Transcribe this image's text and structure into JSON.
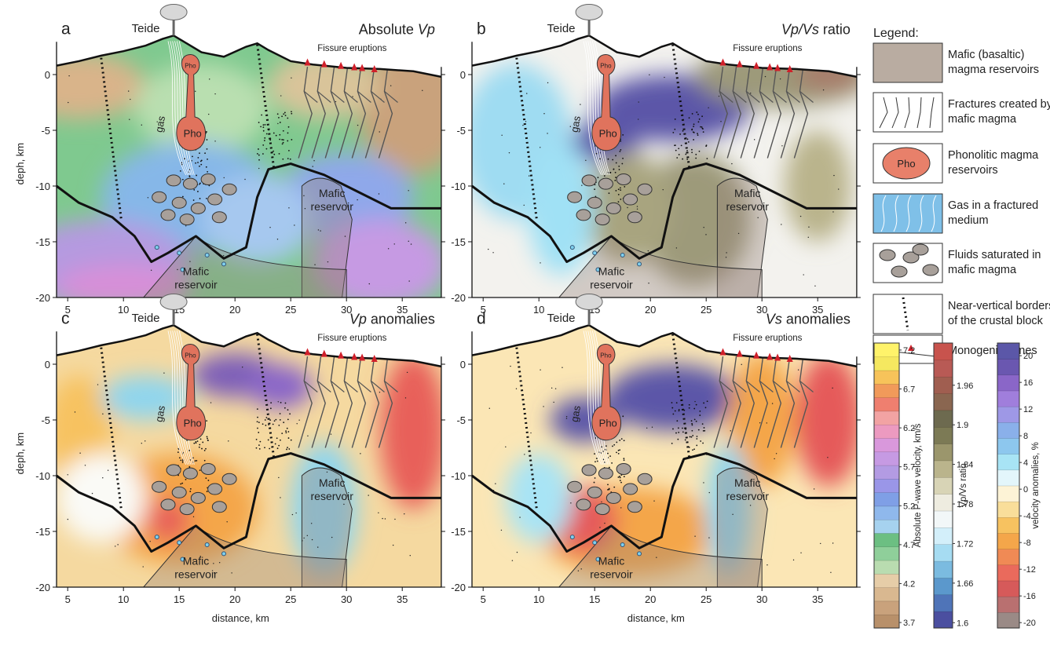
{
  "panels": [
    {
      "letter": "a",
      "title": [
        {
          "text": "Absolute ",
          "italic": false
        },
        {
          "text": "Vp",
          "italic": true
        }
      ]
    },
    {
      "letter": "b",
      "title": [
        {
          "text": "Vp/Vs",
          "italic": true
        },
        {
          "text": " ratio",
          "italic": false
        }
      ]
    },
    {
      "letter": "c",
      "title": [
        {
          "text": "Vp",
          "italic": true
        },
        {
          "text": " anomalies",
          "italic": false
        }
      ]
    },
    {
      "letter": "d",
      "title": [
        {
          "text": "Vs",
          "italic": true
        },
        {
          "text": " anomalies",
          "italic": false
        }
      ]
    }
  ],
  "map_labels": {
    "volcano": "Teide",
    "eruptions": "Fissure eruptions",
    "phonolite": "Pho",
    "gas": "gas",
    "reservoir": [
      "Mafic",
      "reservoir"
    ]
  },
  "axes": {
    "ylabel": "deph, km",
    "xlabel": "distance, km",
    "xlim": [
      4,
      38.5
    ],
    "ylim": [
      -20,
      3.5
    ],
    "xticks": [
      5,
      10,
      15,
      20,
      25,
      30,
      35
    ],
    "yticks": [
      0,
      -5,
      -10,
      -15,
      -20
    ]
  },
  "legend": {
    "title": "Legend:",
    "items": [
      [
        "Mafic (basaltic)",
        "magma reservoirs"
      ],
      [
        "Fractures created by",
        "mafic magma"
      ],
      [
        "Phonolitic magma",
        "reservoirs"
      ],
      [
        "Gas in a fractured",
        "medium"
      ],
      [
        "Fluids saturated in",
        "mafic magma"
      ],
      [
        "Near-vertical borders",
        "of the crustal block"
      ],
      [
        "Monogenic cones"
      ]
    ],
    "pho": "Pho"
  },
  "colorbars": [
    {
      "label": "Absolute P-wave velocity, km/s",
      "lim": [
        3.63,
        7.29
      ],
      "ticks": [
        3.7,
        4.2,
        4.7,
        5.2,
        5.7,
        6.2,
        6.7,
        7.2
      ],
      "colors": [
        "#b8906a",
        "#c9a27c",
        "#d9b890",
        "#e6cda8",
        "#b9dcb0",
        "#8fcf9a",
        "#6cbf82",
        "#a6d2ef",
        "#8fb8ec",
        "#7f9fe6",
        "#9a96e8",
        "#b39be3",
        "#c69ae3",
        "#d998dc",
        "#ec9ac0",
        "#f2a3a3",
        "#ef7f6f",
        "#f19a5a",
        "#f7c35a",
        "#f5e860",
        "#fff36a"
      ]
    },
    {
      "label": "Vp/Vs ratio",
      "lim": [
        1.592,
        2.024
      ],
      "ticks": [
        1.6,
        1.66,
        1.72,
        1.78,
        1.84,
        1.9,
        1.96
      ],
      "colors": [
        "#4b4fa0",
        "#4f74b8",
        "#5b98cc",
        "#7bbbe0",
        "#a6dcf2",
        "#d3effa",
        "#f2f7f8",
        "#eeece0",
        "#d8d4b6",
        "#bab48c",
        "#9b966c",
        "#7c7a55",
        "#6d6a4f",
        "#8a6650",
        "#a05e50",
        "#b85a55",
        "#c8534d"
      ]
    },
    {
      "label": "velocity anomalies, %",
      "lim": [
        -20.8,
        21.9
      ],
      "ticks": [
        -20,
        -16,
        -12,
        -8,
        -4,
        0,
        4,
        8,
        12,
        16,
        20
      ],
      "colors": [
        "#9a8a86",
        "#b97070",
        "#d65a5a",
        "#ea6a5c",
        "#f08a55",
        "#f4a64a",
        "#f7c260",
        "#f9de9a",
        "#fdf3d6",
        "#e3f6fb",
        "#a8e4f5",
        "#8dc7ee",
        "#8ab0ea",
        "#9e98e6",
        "#a07edc",
        "#8a66c8",
        "#6a57b0",
        "#5b57a8"
      ]
    }
  ]
}
